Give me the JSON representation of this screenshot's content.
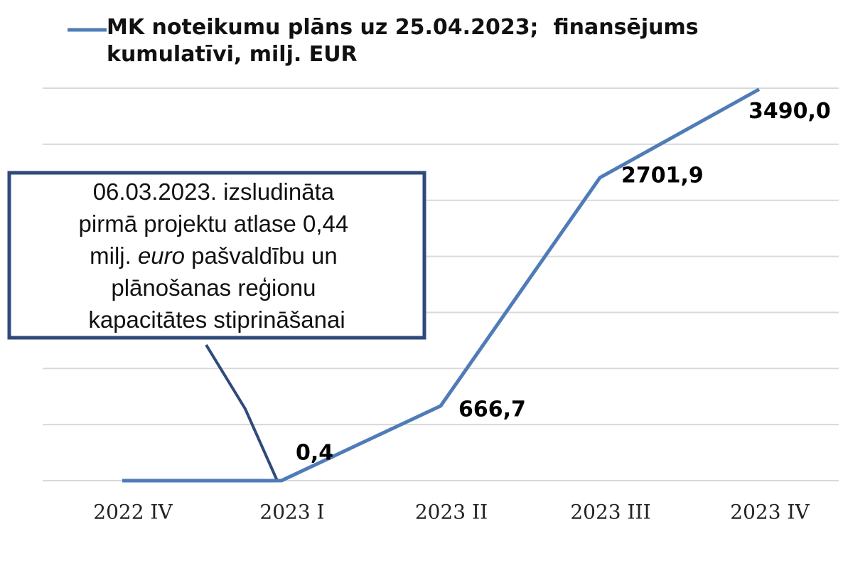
{
  "chart_data": {
    "type": "line",
    "categories": [
      "2022 IV",
      "2023 I",
      "2023 II",
      "2023 III",
      "2023 IV"
    ],
    "series": [
      {
        "name": "MK noteikumu plāns uz 25.04.2023;  finansējums kumulatīvi, milj. EUR",
        "color": "#4f7cb8",
        "values": [
          0,
          0.4,
          666.7,
          2701.9,
          3490.0
        ],
        "value_labels": [
          null,
          "0,4",
          "666,7",
          "2701,9",
          "3490,0"
        ]
      }
    ],
    "ylim": [
      0,
      3500
    ],
    "yticks": [
      0,
      500,
      1000,
      1500,
      2000,
      2500,
      3000,
      3500
    ],
    "grid": true,
    "legend": "top",
    "annotation": {
      "lines": [
        "06.03.2023. izsludināta",
        "pirmā projektu atlase 0,44",
        [
          "milj. ",
          "euro",
          " pašvaldību un"
        ],
        "plānošanas reģionu",
        "kapacitātes stiprināšanai"
      ]
    }
  }
}
